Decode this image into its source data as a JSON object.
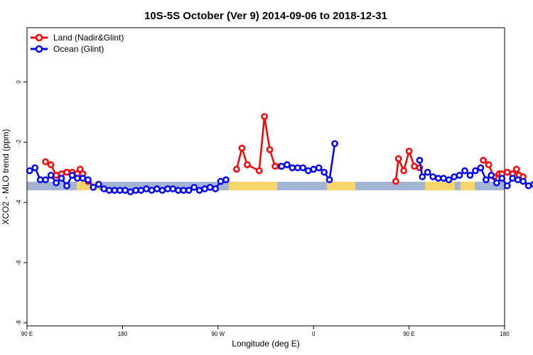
{
  "chart_data": {
    "type": "line",
    "title": "10S-5S October (Ver 9)   2014-09-06 to 2018-12-31",
    "xlabel": "Longitude (deg E)",
    "ylabel": "XCO2 - MLO trend (ppm)",
    "xlim": [
      90,
      450
    ],
    "ylim": [
      -8.1,
      1.8
    ],
    "x_ticks": [
      90,
      162,
      234,
      306,
      378,
      450
    ],
    "x_tick_labels": [
      "90 E",
      "180",
      "90 W",
      "0",
      "90 E",
      "180"
    ],
    "y_ticks": [
      -8,
      -6,
      -4,
      -2,
      0
    ],
    "y_tick_labels": [
      "-8",
      "-6",
      "-4",
      "-2",
      "0"
    ],
    "grid": false,
    "legend": "top-left",
    "series": [
      {
        "name": "Land (Nadir&Glint)",
        "color": "#ff0000",
        "segments": [
          [
            [
              104,
              -2.65
            ],
            [
              108,
              -2.75
            ],
            [
              112,
              -3.1
            ],
            [
              116,
              -3.05
            ],
            [
              120,
              -3.0
            ],
            [
              124,
              -3.0
            ],
            [
              128,
              -3.05
            ],
            [
              130,
              -2.9
            ],
            [
              132,
              -3.05
            ],
            [
              136,
              -3.3
            ]
          ],
          [
            [
              248,
              -2.9
            ],
            [
              252,
              -2.2
            ],
            [
              256,
              -2.75
            ],
            [
              265,
              -2.95
            ],
            [
              269,
              -1.15
            ],
            [
              273,
              -2.25
            ],
            [
              277,
              -2.8
            ],
            [
              281,
              -2.8
            ]
          ],
          [
            [
              368,
              -3.3
            ],
            [
              370,
              -2.55
            ],
            [
              374,
              -2.95
            ],
            [
              378,
              -2.3
            ],
            [
              382,
              -2.8
            ],
            [
              386,
              -2.85
            ]
          ],
          [
            [
              434,
              -2.6
            ],
            [
              438,
              -2.75
            ],
            [
              442,
              -3.15
            ],
            [
              446,
              -3.05
            ],
            [
              448,
              -3.05
            ],
            [
              452,
              -3.0
            ],
            [
              456,
              -3.05
            ],
            [
              459,
              -2.9
            ],
            [
              461,
              -3.1
            ],
            [
              464,
              -3.15
            ]
          ]
        ]
      },
      {
        "name": "Ocean (Glint)",
        "color": "#0000ff",
        "segments": [
          [
            [
              92,
              -2.95
            ],
            [
              96,
              -2.85
            ],
            [
              100,
              -3.25
            ],
            [
              104,
              -3.25
            ],
            [
              108,
              -3.1
            ],
            [
              112,
              -3.35
            ],
            [
              116,
              -3.2
            ],
            [
              120,
              -3.45
            ],
            [
              124,
              -3.1
            ],
            [
              128,
              -3.2
            ],
            [
              132,
              -3.2
            ],
            [
              136,
              -3.25
            ],
            [
              140,
              -3.5
            ],
            [
              144,
              -3.4
            ],
            [
              148,
              -3.55
            ],
            [
              152,
              -3.6
            ],
            [
              156,
              -3.6
            ],
            [
              160,
              -3.6
            ],
            [
              164,
              -3.6
            ],
            [
              168,
              -3.65
            ],
            [
              172,
              -3.6
            ],
            [
              176,
              -3.6
            ],
            [
              180,
              -3.55
            ],
            [
              184,
              -3.6
            ],
            [
              188,
              -3.55
            ],
            [
              192,
              -3.6
            ],
            [
              196,
              -3.55
            ],
            [
              200,
              -3.55
            ],
            [
              204,
              -3.6
            ],
            [
              208,
              -3.6
            ],
            [
              212,
              -3.6
            ],
            [
              216,
              -3.5
            ],
            [
              220,
              -3.6
            ],
            [
              224,
              -3.55
            ],
            [
              228,
              -3.5
            ],
            [
              232,
              -3.55
            ],
            [
              236,
              -3.3
            ],
            [
              240,
              -3.25
            ]
          ],
          [
            [
              282,
              -2.8
            ],
            [
              286,
              -2.75
            ],
            [
              290,
              -2.85
            ],
            [
              294,
              -2.85
            ],
            [
              298,
              -2.85
            ],
            [
              302,
              -2.95
            ],
            [
              306,
              -2.9
            ],
            [
              310,
              -2.85
            ],
            [
              314,
              -3.0
            ],
            [
              318,
              -3.25
            ],
            [
              322,
              -2.05
            ]
          ],
          [
            [
              386,
              -2.6
            ],
            [
              388,
              -3.15
            ],
            [
              392,
              -3.0
            ],
            [
              396,
              -3.15
            ],
            [
              400,
              -3.2
            ],
            [
              404,
              -3.2
            ],
            [
              408,
              -3.25
            ],
            [
              412,
              -3.15
            ],
            [
              416,
              -3.1
            ],
            [
              420,
              -2.95
            ],
            [
              424,
              -3.1
            ],
            [
              428,
              -2.95
            ],
            [
              432,
              -2.85
            ],
            [
              436,
              -3.25
            ],
            [
              440,
              -3.1
            ],
            [
              444,
              -3.35
            ],
            [
              448,
              -3.2
            ],
            [
              452,
              -3.45
            ],
            [
              456,
              -3.2
            ],
            [
              460,
              -3.25
            ],
            [
              464,
              -3.3
            ],
            [
              468,
              -3.45
            ],
            [
              472,
              -3.4
            ],
            [
              476,
              -3.55
            ],
            [
              480,
              -3.6
            ],
            [
              484,
              -3.6
            ],
            [
              488,
              -3.65
            ]
          ]
        ]
      }
    ],
    "colors": {
      "ocean_band": "#a3b5d3",
      "land_band": "#f7d56d"
    }
  }
}
